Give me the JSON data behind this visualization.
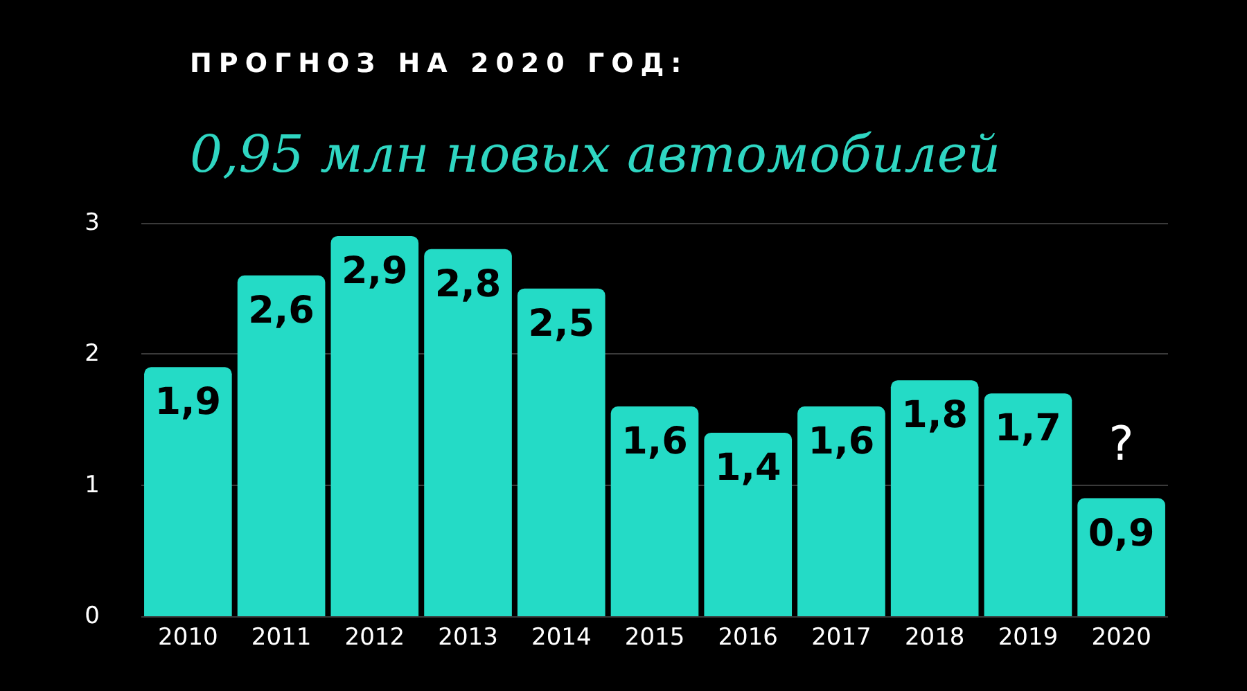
{
  "chart_data": {
    "type": "bar",
    "title": "ПРОГНОЗ НА 2020 ГОД:",
    "subtitle": "0,95 млн новых автомобилей",
    "categories": [
      "2010",
      "2011",
      "2012",
      "2013",
      "2014",
      "2015",
      "2016",
      "2017",
      "2018",
      "2019",
      "2020"
    ],
    "values": [
      1.9,
      2.6,
      2.9,
      2.8,
      2.5,
      1.6,
      1.4,
      1.6,
      1.8,
      1.7,
      0.9
    ],
    "value_labels": [
      "1,9",
      "2,6",
      "2,9",
      "2,8",
      "2,5",
      "1,6",
      "1,4",
      "1,6",
      "1,8",
      "1,7",
      "0,9"
    ],
    "color": "#24dbc6",
    "ylim": [
      0,
      3
    ],
    "yticks": [
      0,
      1,
      2,
      3
    ],
    "grid": "y",
    "annotations": [
      {
        "text": "?",
        "x": "2020",
        "y": 0.9
      }
    ]
  }
}
